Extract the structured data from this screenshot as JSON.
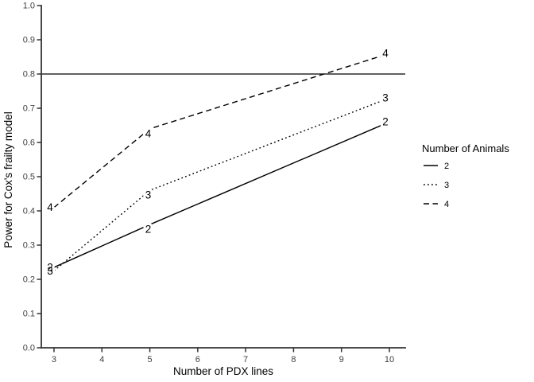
{
  "chart_data": {
    "type": "line",
    "xlabel": "Number of PDX lines",
    "ylabel": "Power for Cox's frailty model",
    "x_ticks": [
      3,
      4,
      5,
      6,
      7,
      8,
      9,
      10
    ],
    "y_ticks": [
      "0.0",
      "0.1",
      "0.2",
      "0.3",
      "0.4",
      "0.5",
      "0.6",
      "0.7",
      "0.8",
      "0.9",
      "1.0"
    ],
    "xlim": [
      2.735,
      10.332
    ],
    "ylim": [
      0,
      1
    ],
    "grid": "off",
    "reference_line_y": 0.8,
    "series": [
      {
        "name": "2",
        "linetype": "solid",
        "x": [
          3,
          5,
          10
        ],
        "y": [
          0.235,
          0.36,
          0.66
        ]
      },
      {
        "name": "3",
        "linetype": "dotted",
        "x": [
          3,
          5,
          10
        ],
        "y": [
          0.225,
          0.46,
          0.73
        ]
      },
      {
        "name": "4",
        "linetype": "dashed",
        "x": [
          3,
          5,
          10
        ],
        "y": [
          0.41,
          0.64,
          0.86
        ]
      }
    ],
    "legend": {
      "title": "Number of Animals",
      "position": "right",
      "entries": [
        {
          "label": "2",
          "linetype": "solid"
        },
        {
          "label": "3",
          "linetype": "dotted"
        },
        {
          "label": "4",
          "linetype": "dashed"
        }
      ]
    },
    "colors": {
      "line": "#000000",
      "axis": "#333333",
      "tick_text": "#404040",
      "background": "#ffffff"
    }
  }
}
